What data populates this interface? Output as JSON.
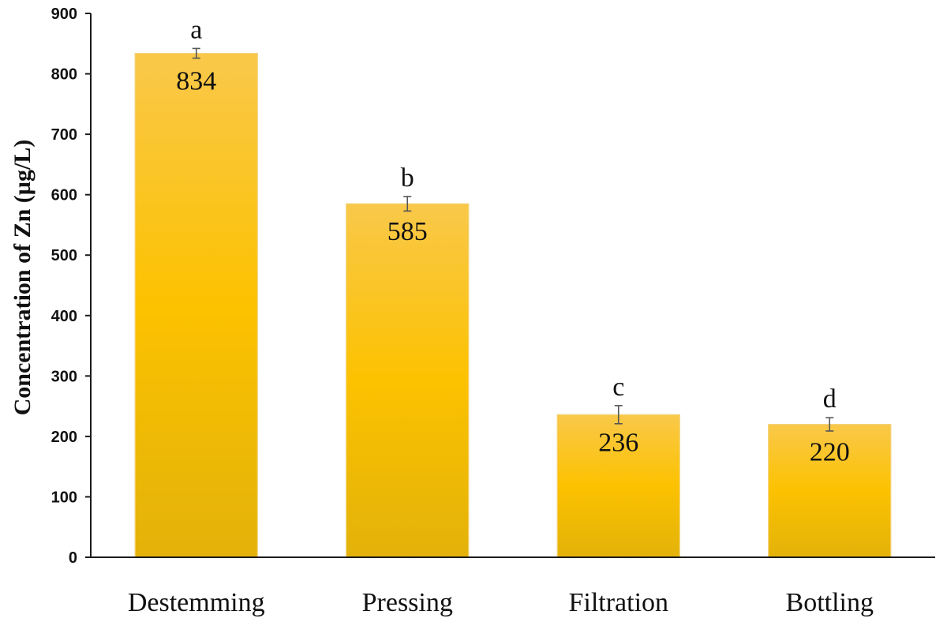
{
  "chart_data": {
    "type": "bar",
    "categories": [
      "Destemming",
      "Pressing",
      "Filtration",
      "Bottling"
    ],
    "values": [
      834,
      585,
      236,
      220
    ],
    "data_labels": [
      "834",
      "585",
      "236",
      "220"
    ],
    "error": [
      8,
      12,
      15,
      11
    ],
    "group_letters": [
      "a",
      "b",
      "c",
      "d"
    ],
    "ylabel": "Concentration of Zn (µg/L)",
    "ylim": [
      0,
      900
    ],
    "yticks": [
      0,
      100,
      200,
      300,
      400,
      500,
      600,
      700,
      800,
      900
    ],
    "grid": false,
    "bar_color_top": "#F9C84A",
    "bar_color_mid": "#FCC200",
    "bar_color_bottom": "#E3B20A"
  }
}
